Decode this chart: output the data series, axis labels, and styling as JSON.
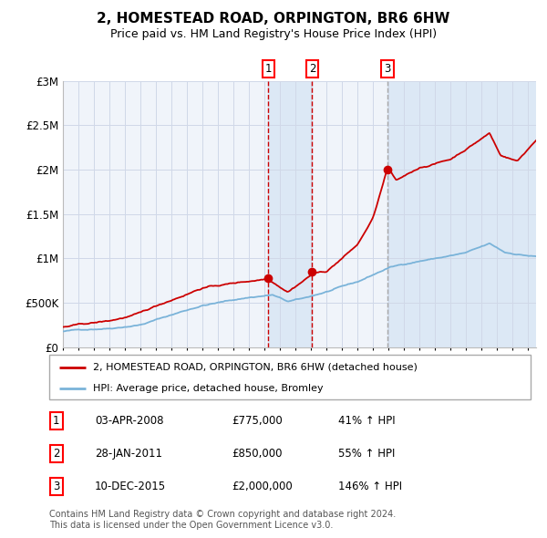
{
  "title": "2, HOMESTEAD ROAD, ORPINGTON, BR6 6HW",
  "subtitle": "Price paid vs. HM Land Registry's House Price Index (HPI)",
  "background_color": "#ffffff",
  "plot_bg_color": "#f0f4fa",
  "grid_color": "#d0d8e8",
  "hpi_line_color": "#7ab3d9",
  "price_line_color": "#cc0000",
  "sale_marker_color": "#cc0000",
  "shade_color": "#dce8f5",
  "dashed_line_color": "#cc0000",
  "dashed3_color": "#aaaaaa",
  "transactions": [
    {
      "label": "1",
      "date": "03-APR-2008",
      "price": 775000,
      "price_str": "£775,000",
      "pct": "41% ↑ HPI",
      "x": 2008.25
    },
    {
      "label": "2",
      "date": "28-JAN-2011",
      "price": 850000,
      "price_str": "£850,000",
      "pct": "55% ↑ HPI",
      "x": 2011.07
    },
    {
      "label": "3",
      "date": "10-DEC-2015",
      "price": 2000000,
      "price_str": "£2,000,000",
      "pct": "146% ↑ HPI",
      "x": 2015.92
    }
  ],
  "legend_entries": [
    "2, HOMESTEAD ROAD, ORPINGTON, BR6 6HW (detached house)",
    "HPI: Average price, detached house, Bromley"
  ],
  "footnote1": "Contains HM Land Registry data © Crown copyright and database right 2024.",
  "footnote2": "This data is licensed under the Open Government Licence v3.0.",
  "ylim": [
    0,
    3000000
  ],
  "yticks": [
    0,
    500000,
    1000000,
    1500000,
    2000000,
    2500000,
    3000000
  ],
  "ytick_labels": [
    "£0",
    "£500K",
    "£1M",
    "£1.5M",
    "£2M",
    "£2.5M",
    "£3M"
  ],
  "xmin": 1995,
  "xmax": 2025.5
}
